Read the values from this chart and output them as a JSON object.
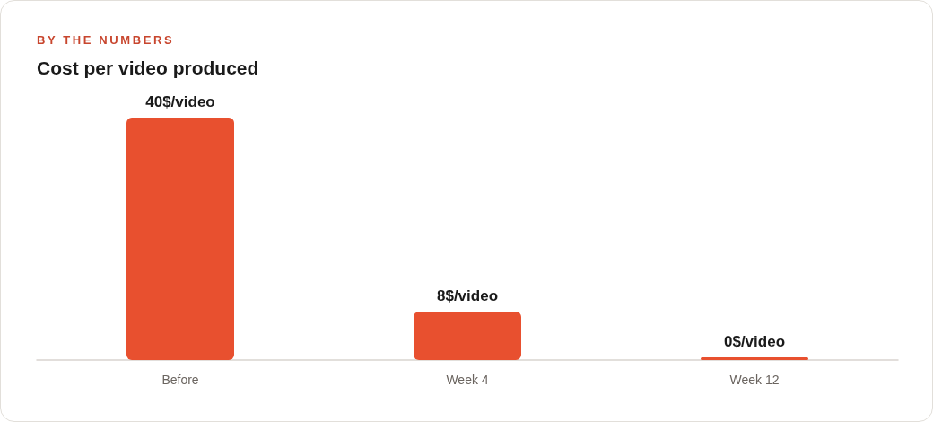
{
  "chart_data": {
    "type": "bar",
    "subtitle": "BY THE NUMBERS",
    "title": "Cost per video produced",
    "categories": [
      "Before",
      "Week 4",
      "Week 12"
    ],
    "values": [
      40,
      8,
      0
    ],
    "value_labels": [
      "40$/video",
      "8$/video",
      "0$/video"
    ],
    "color": "#e8502f"
  }
}
